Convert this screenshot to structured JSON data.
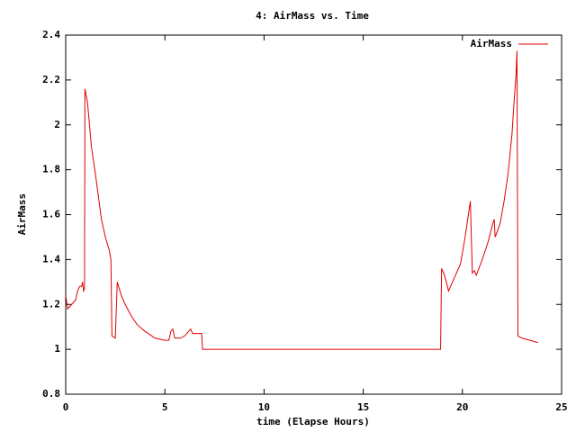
{
  "chart_data": {
    "type": "line",
    "title": "4: AirMass vs. Time",
    "x_label": "time (Elapse Hours)",
    "y_label": "AirMass",
    "x": [
      0,
      0.1,
      0.3,
      0.5,
      0.6,
      0.7,
      0.8,
      0.85,
      0.9,
      0.95,
      0.97,
      1.1,
      1.3,
      1.5,
      1.8,
      2.0,
      2.2,
      2.28,
      2.33,
      2.5,
      2.6,
      2.8,
      3.0,
      3.3,
      3.6,
      4.0,
      4.5,
      5.0,
      5.2,
      5.3,
      5.4,
      5.5,
      5.8,
      6.0,
      6.2,
      6.3,
      6.4,
      6.5,
      6.85,
      6.9,
      18.9,
      18.95,
      19.1,
      19.3,
      19.6,
      19.9,
      20.1,
      20.3,
      20.4,
      20.5,
      20.6,
      20.7,
      21.0,
      21.3,
      21.5,
      21.6,
      21.65,
      21.9,
      22.1,
      22.3,
      22.5,
      22.6,
      22.7,
      22.75,
      22.8,
      23.0,
      23.4,
      23.8
    ],
    "series": [
      {
        "name": "AirMass",
        "color": "#e00000",
        "values": [
          1.24,
          1.18,
          1.2,
          1.22,
          1.26,
          1.28,
          1.28,
          1.3,
          1.26,
          1.27,
          2.16,
          2.1,
          1.9,
          1.78,
          1.58,
          1.5,
          1.44,
          1.4,
          1.06,
          1.05,
          1.3,
          1.24,
          1.2,
          1.15,
          1.11,
          1.08,
          1.05,
          1.04,
          1.04,
          1.08,
          1.09,
          1.05,
          1.05,
          1.06,
          1.08,
          1.09,
          1.07,
          1.07,
          1.07,
          1.0,
          1.0,
          1.36,
          1.33,
          1.26,
          1.32,
          1.38,
          1.48,
          1.6,
          1.66,
          1.34,
          1.35,
          1.33,
          1.4,
          1.48,
          1.55,
          1.58,
          1.5,
          1.56,
          1.66,
          1.78,
          1.96,
          2.1,
          2.22,
          2.33,
          1.06,
          1.05,
          1.04,
          1.03
        ]
      }
    ],
    "xlim": [
      0,
      25
    ],
    "xticks": [
      0,
      5,
      10,
      15,
      20,
      25
    ],
    "ylim": [
      0.8,
      2.4
    ],
    "yticks": [
      0.8,
      1,
      1.2,
      1.4,
      1.6,
      1.8,
      2,
      2.2,
      2.4
    ],
    "grid": false,
    "legend_position": "top-right"
  }
}
